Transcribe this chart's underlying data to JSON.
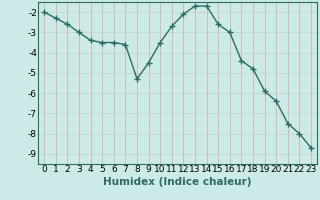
{
  "x": [
    0,
    1,
    2,
    3,
    4,
    5,
    6,
    7,
    8,
    9,
    10,
    11,
    12,
    13,
    14,
    15,
    16,
    17,
    18,
    19,
    20,
    21,
    22,
    23
  ],
  "y": [
    -2.0,
    -2.3,
    -2.6,
    -3.0,
    -3.4,
    -3.5,
    -3.5,
    -3.6,
    -5.3,
    -4.5,
    -3.5,
    -2.7,
    -2.1,
    -1.7,
    -1.7,
    -2.6,
    -3.0,
    -4.4,
    -4.8,
    -5.9,
    -6.4,
    -7.5,
    -8.0,
    -8.7
  ],
  "line_color": "#2e6b60",
  "marker": "+",
  "bg_color": "#cceae7",
  "grid_h_color": "#c8d8d5",
  "grid_v_color": "#d4b8b8",
  "xlabel": "Humidex (Indice chaleur)",
  "xlim": [
    -0.5,
    23.5
  ],
  "ylim": [
    -9.5,
    -1.5
  ],
  "yticks": [
    -9,
    -8,
    -7,
    -6,
    -5,
    -4,
    -3,
    -2
  ],
  "xticks": [
    0,
    1,
    2,
    3,
    4,
    5,
    6,
    7,
    8,
    9,
    10,
    11,
    12,
    13,
    14,
    15,
    16,
    17,
    18,
    19,
    20,
    21,
    22,
    23
  ],
  "fontsize_tick": 6.5,
  "fontsize_label": 7.5
}
